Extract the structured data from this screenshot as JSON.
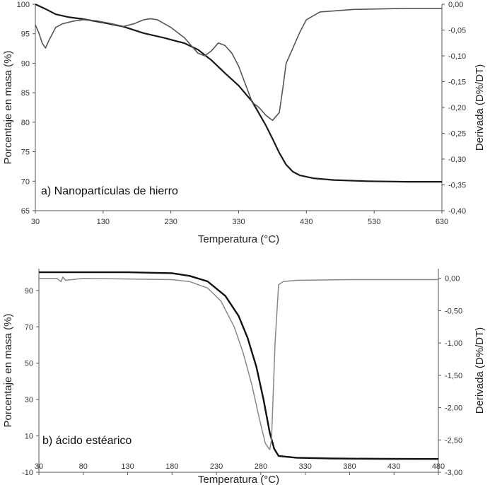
{
  "chart_data": [
    {
      "type": "line",
      "panel_label": "a) Nanopartículas de hierro",
      "xlabel": "Temperatura (°C)",
      "ylabel": "Porcentaje en masa (%)",
      "y2label": "Derivada (D%/DT)",
      "xlim": [
        30,
        630
      ],
      "ylim": [
        65,
        100
      ],
      "y2lim": [
        -0.4,
        0.0
      ],
      "xticks": [
        "30",
        "130",
        "230",
        "330",
        "430",
        "530",
        "630"
      ],
      "yticks": [
        "65",
        "70",
        "75",
        "80",
        "85",
        "90",
        "95",
        "100"
      ],
      "y2ticks": [
        "-0,40",
        "-0,35",
        "-0,30",
        "-0,25",
        "-0,20",
        "-0,15",
        "-0,10",
        "-0,05",
        "0,00"
      ],
      "grid": false,
      "series": [
        {
          "axis": "left",
          "color": "#1a1a1a",
          "x": [
            30,
            45,
            60,
            80,
            100,
            130,
            160,
            190,
            220,
            250,
            270,
            290,
            310,
            330,
            350,
            370,
            380,
            390,
            400,
            410,
            420,
            440,
            470,
            520,
            580,
            630
          ],
          "y": [
            100,
            99.2,
            98.3,
            97.8,
            97.5,
            96.9,
            96.2,
            95.1,
            94.3,
            93.4,
            92.3,
            90.5,
            88.3,
            86.2,
            83.5,
            79.5,
            77.2,
            74.8,
            72.8,
            71.6,
            71.0,
            70.5,
            70.2,
            70.0,
            69.9,
            69.9
          ]
        },
        {
          "axis": "right",
          "color": "#555555",
          "x": [
            30,
            35,
            40,
            45,
            50,
            60,
            70,
            85,
            100,
            120,
            140,
            160,
            175,
            190,
            200,
            210,
            230,
            250,
            270,
            280,
            290,
            300,
            310,
            320,
            330,
            340,
            350,
            360,
            370,
            380,
            390,
            395,
            400,
            410,
            415,
            420,
            430,
            450,
            500,
            580,
            630
          ],
          "y": [
            -0.04,
            -0.055,
            -0.075,
            -0.085,
            -0.07,
            -0.045,
            -0.038,
            -0.033,
            -0.03,
            -0.032,
            -0.037,
            -0.043,
            -0.038,
            -0.03,
            -0.028,
            -0.03,
            -0.045,
            -0.065,
            -0.095,
            -0.1,
            -0.09,
            -0.075,
            -0.08,
            -0.095,
            -0.12,
            -0.155,
            -0.19,
            -0.2,
            -0.215,
            -0.225,
            -0.21,
            -0.165,
            -0.115,
            -0.085,
            -0.07,
            -0.055,
            -0.03,
            -0.015,
            -0.01,
            -0.008,
            -0.008
          ]
        }
      ]
    },
    {
      "type": "line",
      "panel_label": "b) ácido estéarico",
      "xlabel": "Temperatura (°C)",
      "ylabel": "Porcentaje en masa (%)",
      "y2label": "Derivada (D%/DT)",
      "xlim": [
        30,
        480
      ],
      "ylim": [
        -10,
        102
      ],
      "y2lim": [
        -3.0,
        0.15
      ],
      "xticks": [
        "30",
        "80",
        "130",
        "180",
        "230",
        "280",
        "330",
        "380",
        "430",
        "480"
      ],
      "yticks": [
        "-10",
        "10",
        "30",
        "50",
        "70",
        "90"
      ],
      "y2ticks": [
        "-3,00",
        "-2,50",
        "-2,00",
        "-1,50",
        "-1,00",
        "-0,50",
        "0,00"
      ],
      "grid": false,
      "series": [
        {
          "axis": "left",
          "color": "#111111",
          "x": [
            30,
            80,
            130,
            180,
            200,
            220,
            240,
            255,
            265,
            275,
            283,
            290,
            295,
            300,
            320,
            360,
            420,
            480
          ],
          "y": [
            100,
            100,
            100,
            99.5,
            98,
            95,
            87,
            76,
            64,
            48,
            30,
            12,
            3,
            -1,
            -2,
            -2.4,
            -2.6,
            -2.7
          ]
        },
        {
          "axis": "right",
          "color": "#888888",
          "x": [
            30,
            50,
            55,
            57,
            60,
            80,
            130,
            180,
            200,
            220,
            235,
            250,
            260,
            270,
            278,
            285,
            290,
            292,
            296,
            300,
            305,
            320,
            380,
            480
          ],
          "y": [
            0.0,
            0.0,
            -0.05,
            0.02,
            -0.03,
            0.0,
            -0.01,
            -0.02,
            -0.05,
            -0.15,
            -0.35,
            -0.75,
            -1.15,
            -1.65,
            -2.15,
            -2.55,
            -2.65,
            -2.5,
            -1.0,
            -0.1,
            -0.05,
            -0.03,
            -0.02,
            -0.02
          ]
        }
      ]
    }
  ]
}
